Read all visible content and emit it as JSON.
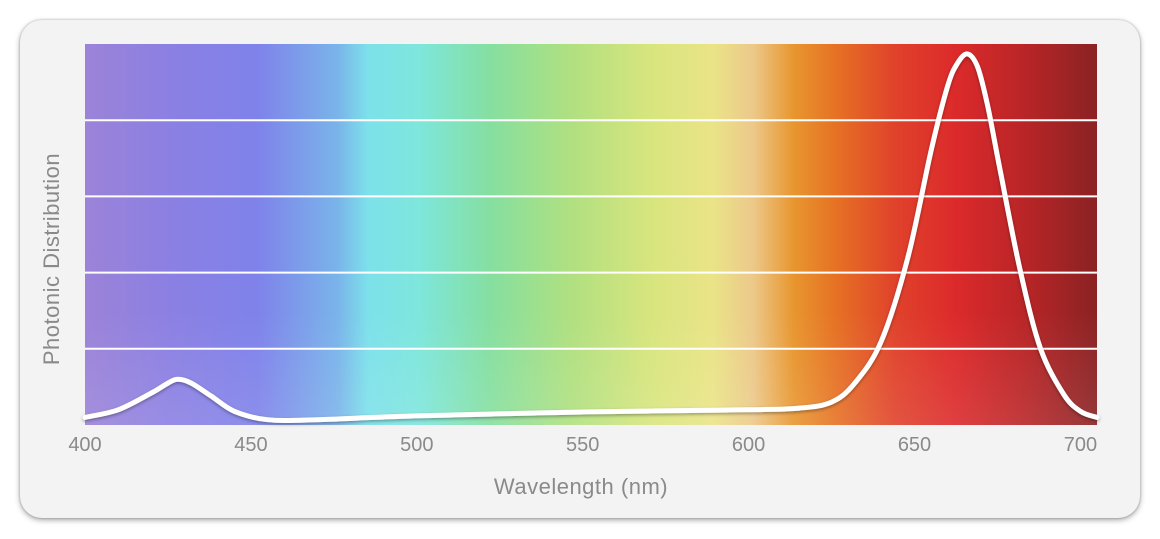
{
  "chart_data": {
    "type": "area",
    "title": "",
    "xlabel": "Wavelength (nm)",
    "ylabel": "Photonic Distribution",
    "xlim": [
      400,
      705
    ],
    "ylim": [
      0,
      5
    ],
    "x_ticks": [
      "400",
      "450",
      "500",
      "550",
      "600",
      "650",
      "700"
    ],
    "grid": true,
    "y_tick_labels_shown": false,
    "background": "visible-spectrum gradient (violet to dark red)",
    "series": [
      {
        "x": [
          400,
          410,
          420,
          425,
          428,
          432,
          438,
          445,
          455,
          470,
          500,
          550,
          600,
          615,
          625,
          632,
          640,
          648,
          655,
          660,
          663,
          666,
          669,
          672,
          676,
          682,
          688,
          695,
          700,
          705
        ],
        "y": [
          0.1,
          0.2,
          0.42,
          0.55,
          0.6,
          0.55,
          0.38,
          0.18,
          0.07,
          0.07,
          0.12,
          0.17,
          0.2,
          0.22,
          0.3,
          0.55,
          1.1,
          2.2,
          3.6,
          4.45,
          4.75,
          4.87,
          4.7,
          4.2,
          3.3,
          2.0,
          1.0,
          0.4,
          0.18,
          0.1
        ],
        "color": "#ffffff"
      }
    ]
  }
}
